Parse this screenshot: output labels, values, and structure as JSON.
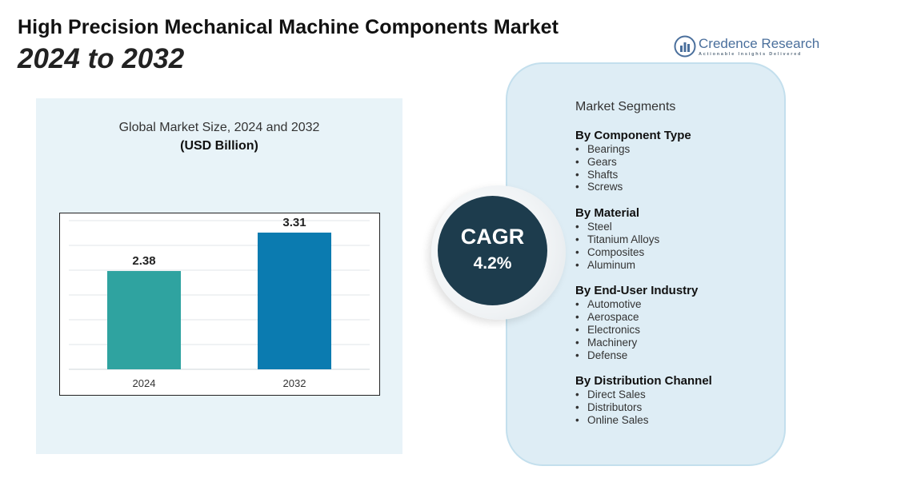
{
  "header": {
    "title_line1": "High Precision Mechanical Machine Components Market",
    "title_line2": "2024 to 2032"
  },
  "logo": {
    "name": "Credence Research",
    "tagline": "Actionable Insights Delivered",
    "icon": "bar-chart-logo-icon"
  },
  "chart_panel": {
    "title": "Global Market Size, 2024 and 2032",
    "subtitle": "(USD Billion)"
  },
  "chart_data": {
    "type": "bar",
    "title": "Global Market Size, 2024 and 2032",
    "ylabel": "(USD Billion)",
    "xlabel": "",
    "categories": [
      "2024",
      "2032"
    ],
    "values": [
      2.38,
      3.31
    ],
    "ylim": [
      0,
      3.6
    ],
    "grid": true,
    "bar_colors": [
      "#2fa3a0",
      "#0b7bb0"
    ],
    "value_labels": [
      "2.38",
      "3.31"
    ]
  },
  "cagr": {
    "label": "CAGR",
    "value": "4.2%"
  },
  "segments": {
    "heading": "Market Segments",
    "groups": [
      {
        "title": "By Component Type",
        "items": [
          "Bearings",
          "Gears",
          "Shafts",
          "Screws"
        ]
      },
      {
        "title": "By Material",
        "items": [
          "Steel",
          "Titanium Alloys",
          "Composites",
          "Aluminum"
        ]
      },
      {
        "title": "By End-User Industry",
        "items": [
          "Automotive",
          "Aerospace",
          "Electronics",
          "Machinery",
          "Defense"
        ]
      },
      {
        "title": "By Distribution Channel",
        "items": [
          "Direct Sales",
          "Distributors",
          "Online Sales"
        ]
      }
    ]
  },
  "colors": {
    "panel_bg": "#e8f3f8",
    "segments_bg": "#deedf5",
    "cagr_bg": "#1d3c4d",
    "bar_2024": "#2fa3a0",
    "bar_2032": "#0b7bb0"
  }
}
